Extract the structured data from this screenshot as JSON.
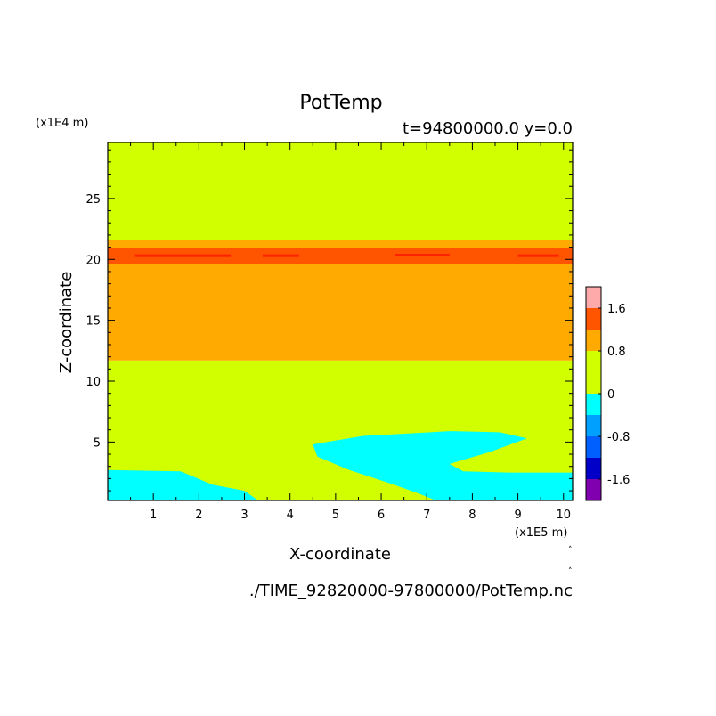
{
  "chart_data": {
    "type": "heatmap",
    "title": "PotTemp",
    "subtitle": "t=94800000.0 y=0.0",
    "xlabel": "X-coordinate",
    "ylabel": "Z-coordinate",
    "x_unit": "(x1E5 m)",
    "y_unit": "(x1E4 m)",
    "footer": "./TIME_92820000-97800000/PotTemp.nc",
    "xlim": [
      0,
      10.2
    ],
    "ylim": [
      0.2,
      29.6
    ],
    "x_ticks": [
      1,
      2,
      3,
      4,
      5,
      6,
      7,
      8,
      9,
      10
    ],
    "y_ticks": [
      5,
      10,
      15,
      20,
      25
    ],
    "colorbar": {
      "levels": [
        -2.0,
        -1.6,
        -1.2,
        -0.8,
        -0.4,
        0,
        0.8,
        1.2,
        1.6,
        2.0
      ],
      "colors": [
        "#8000b0",
        "#0000c8",
        "#0060ff",
        "#00a0ff",
        "#00ffff",
        "#d2ff00",
        "#ffaa00",
        "#ff5500",
        "#ff2200",
        "#ffaaaa"
      ],
      "tick_labels": [
        "1.6",
        "0.8",
        "0",
        "-0.8",
        "-1.6"
      ],
      "tick_values": [
        1.6,
        0.8,
        0,
        -0.8,
        -1.6
      ]
    },
    "bands": [
      {
        "z_from": 0.2,
        "z_to": 11.7,
        "level": "0"
      },
      {
        "z_from": 11.7,
        "z_to": 19.6,
        "level": "0.8"
      },
      {
        "z_from": 19.6,
        "z_to": 20.9,
        "level": "1.2"
      },
      {
        "z_from": 20.9,
        "z_to": 21.6,
        "level": "0.8"
      },
      {
        "z_from": 21.6,
        "z_to": 29.6,
        "level": "0"
      }
    ],
    "regions": [
      {
        "level": "-0.4",
        "points": [
          [
            0,
            0.2
          ],
          [
            0,
            2.7
          ],
          [
            1.6,
            2.6
          ],
          [
            2.3,
            1.5
          ],
          [
            3.0,
            1.0
          ],
          [
            3.3,
            0.2
          ]
        ]
      },
      {
        "level": "-0.4",
        "points": [
          [
            4.5,
            4.8
          ],
          [
            4.6,
            3.8
          ],
          [
            5.3,
            2.7
          ],
          [
            6.2,
            1.6
          ],
          [
            6.8,
            0.8
          ],
          [
            7.2,
            0.2
          ],
          [
            10.2,
            0.2
          ],
          [
            10.2,
            2.5
          ],
          [
            8.8,
            2.5
          ],
          [
            7.8,
            2.6
          ],
          [
            7.5,
            3.2
          ],
          [
            8.4,
            4.2
          ],
          [
            9.2,
            5.3
          ],
          [
            8.6,
            5.8
          ],
          [
            7.5,
            5.9
          ],
          [
            6.6,
            5.7
          ],
          [
            5.6,
            5.5
          ],
          [
            4.8,
            5.0
          ]
        ]
      }
    ],
    "streaks": [
      {
        "x_from": 0.6,
        "x_to": 2.7,
        "z": 20.3
      },
      {
        "x_from": 3.4,
        "x_to": 4.2,
        "z": 20.3
      },
      {
        "x_from": 6.3,
        "x_to": 7.5,
        "z": 20.35
      },
      {
        "x_from": 9.0,
        "x_to": 9.9,
        "z": 20.3
      }
    ]
  }
}
